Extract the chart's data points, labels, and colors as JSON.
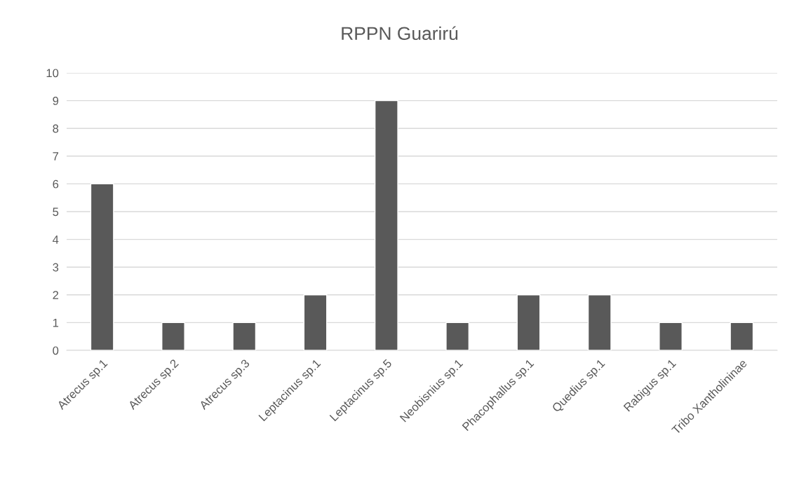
{
  "chart_data": {
    "type": "bar",
    "title": "RPPN Guarirú",
    "categories": [
      "Atrecus sp.1",
      "Atrecus sp.2",
      "Atrecus sp.3",
      "Leptacinus sp.1",
      "Leptacinus sp.5",
      "Neobisnius sp.1",
      "Phacophallus sp.1",
      "Quedius sp.1",
      "Rabigus sp.1",
      "Tribo Xantholininae"
    ],
    "values": [
      6,
      1,
      1,
      2,
      9,
      1,
      2,
      2,
      1,
      1
    ],
    "color": "#595959",
    "ylim": [
      0,
      10
    ],
    "yticks": [
      0,
      1,
      2,
      3,
      4,
      5,
      6,
      7,
      8,
      9,
      10
    ],
    "grid": "y",
    "legend": false
  }
}
